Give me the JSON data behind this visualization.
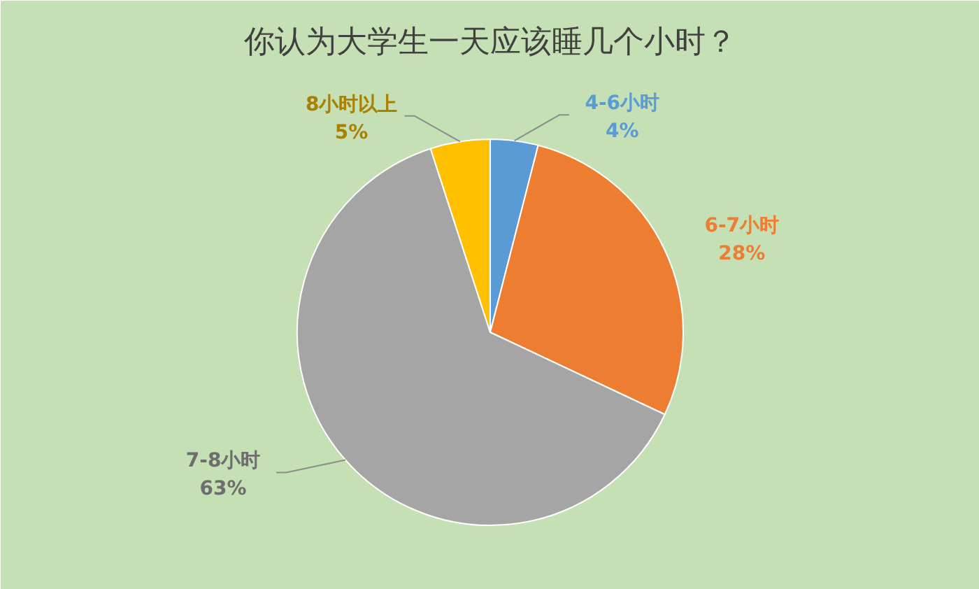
{
  "chart_data": {
    "type": "pie",
    "title": "你认为大学生一天应该睡几个小时？",
    "categories": [
      "4-6小时",
      "6-7小时",
      "7-8小时",
      "8小时以上"
    ],
    "values": [
      4,
      28,
      63,
      5
    ],
    "colors": [
      "#5b9bd5",
      "#ed7d31",
      "#a5a5a5",
      "#ffc000"
    ],
    "value_labels": [
      "4%",
      "28%",
      "63%",
      "5%"
    ]
  }
}
